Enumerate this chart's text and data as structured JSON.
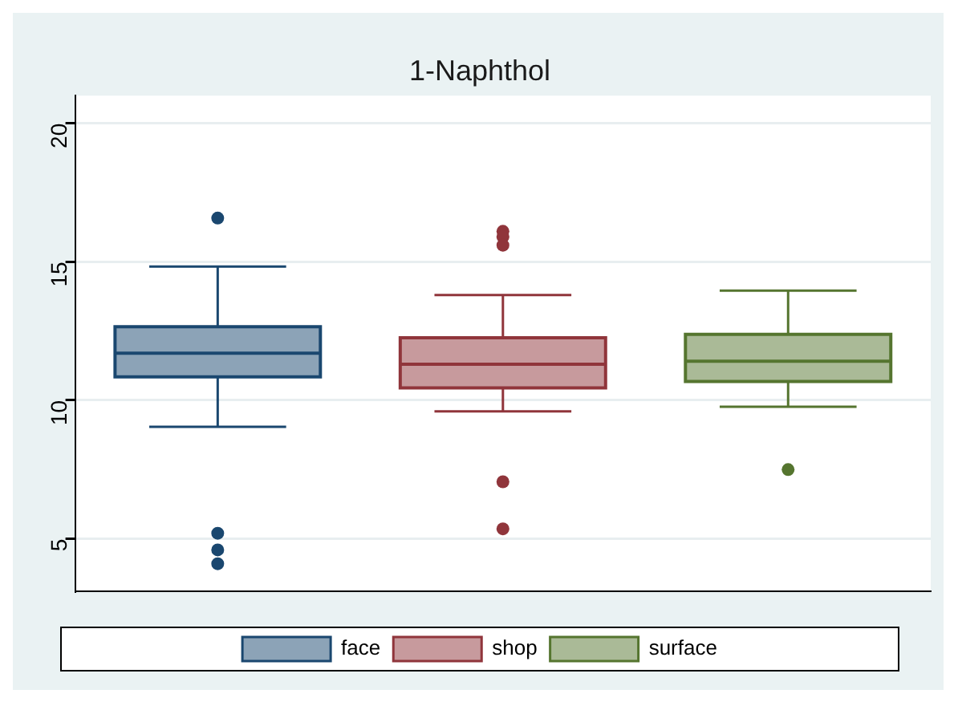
{
  "chart_data": {
    "type": "box",
    "title": "1-Naphthol",
    "categories": [
      null
    ],
    "ylim": [
      3.1,
      21
    ],
    "yticks": [
      5,
      10,
      15,
      20
    ],
    "grid": "y",
    "legend": "bottom",
    "series": [
      {
        "name": "face",
        "color": "#1a476f",
        "boxes": [
          {
            "low": 9.04,
            "q1": 10.85,
            "median": 11.7,
            "q3": 12.66,
            "high": 14.83,
            "outliers": [
              16.58,
              5.2,
              4.6,
              4.1
            ]
          }
        ]
      },
      {
        "name": "shop",
        "color": "#90353b",
        "boxes": [
          {
            "low": 9.6,
            "q1": 10.45,
            "median": 11.3,
            "q3": 12.26,
            "high": 13.8,
            "outliers": [
              16.1,
              15.9,
              15.6,
              7.06,
              5.36
            ]
          }
        ]
      },
      {
        "name": "surface",
        "color": "#55752f",
        "boxes": [
          {
            "low": 9.77,
            "q1": 10.68,
            "median": 11.41,
            "q3": 12.38,
            "high": 13.96,
            "outliers": [
              7.5
            ]
          }
        ]
      }
    ]
  }
}
